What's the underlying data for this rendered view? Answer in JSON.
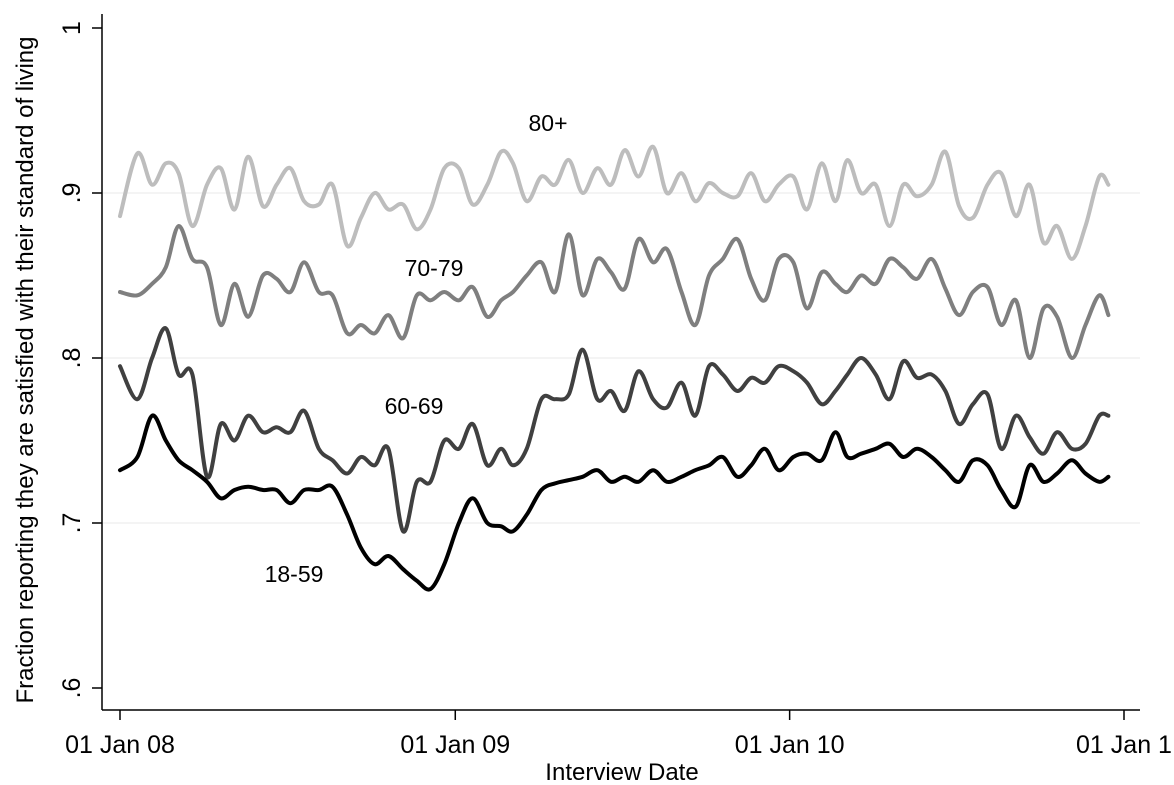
{
  "chart_data": {
    "type": "line",
    "xlabel": "Interview Date",
    "ylabel": "Fraction reporting they are satisfied with their standard of living",
    "xlim": [
      "2008-01-01",
      "2011-01-01"
    ],
    "ylim": [
      0.6,
      1.0
    ],
    "x_ticks": [
      {
        "value": "2008-01-01",
        "label": "01 Jan 08"
      },
      {
        "value": "2009-01-01",
        "label": "01 Jan 09"
      },
      {
        "value": "2010-01-01",
        "label": "01 Jan 10"
      },
      {
        "value": "2011-01-01",
        "label": "01 Jan 1"
      }
    ],
    "y_ticks": [
      {
        "value": 0.6,
        "label": ".6"
      },
      {
        "value": 0.7,
        "label": ".7"
      },
      {
        "value": 0.8,
        "label": ".8"
      },
      {
        "value": 0.9,
        "label": ".9"
      },
      {
        "value": 1.0,
        "label": "1"
      }
    ],
    "grid": true,
    "legend": "none (series labelled directly on the plot)",
    "series": [
      {
        "name": "80+",
        "color": "#bdbdbd",
        "x": [
          "2008-01-01",
          "2008-01-20",
          "2008-02-05",
          "2008-02-20",
          "2008-03-05",
          "2008-03-20",
          "2008-04-05",
          "2008-04-20",
          "2008-05-05",
          "2008-05-20",
          "2008-06-05",
          "2008-06-20",
          "2008-07-05",
          "2008-07-20",
          "2008-08-05",
          "2008-08-20",
          "2008-09-05",
          "2008-09-20",
          "2008-10-05",
          "2008-10-20",
          "2008-11-05",
          "2008-11-20",
          "2008-12-05",
          "2008-12-20",
          "2009-01-05",
          "2009-01-20",
          "2009-02-05",
          "2009-02-20",
          "2009-03-05",
          "2009-03-20",
          "2009-04-05",
          "2009-04-20",
          "2009-05-05",
          "2009-05-20",
          "2009-06-05",
          "2009-06-20",
          "2009-07-05",
          "2009-07-20",
          "2009-08-05",
          "2009-08-20",
          "2009-09-05",
          "2009-09-20",
          "2009-10-05",
          "2009-10-20",
          "2009-11-05",
          "2009-11-20",
          "2009-12-05",
          "2009-12-20",
          "2010-01-05",
          "2010-01-20",
          "2010-02-05",
          "2010-02-20",
          "2010-03-05",
          "2010-03-20",
          "2010-04-05",
          "2010-04-20",
          "2010-05-05",
          "2010-05-20",
          "2010-06-05",
          "2010-06-20",
          "2010-07-05",
          "2010-07-20",
          "2010-08-05",
          "2010-08-20",
          "2010-09-05",
          "2010-09-20",
          "2010-10-05",
          "2010-10-20",
          "2010-11-05",
          "2010-11-20",
          "2010-12-05",
          "2010-12-15"
        ],
        "values": [
          0.886,
          0.924,
          0.905,
          0.918,
          0.912,
          0.88,
          0.905,
          0.915,
          0.89,
          0.922,
          0.892,
          0.905,
          0.915,
          0.895,
          0.893,
          0.905,
          0.868,
          0.885,
          0.9,
          0.89,
          0.893,
          0.878,
          0.89,
          0.915,
          0.915,
          0.893,
          0.905,
          0.925,
          0.918,
          0.895,
          0.91,
          0.905,
          0.92,
          0.9,
          0.915,
          0.905,
          0.926,
          0.91,
          0.928,
          0.9,
          0.912,
          0.895,
          0.906,
          0.9,
          0.898,
          0.912,
          0.895,
          0.905,
          0.91,
          0.89,
          0.918,
          0.895,
          0.92,
          0.9,
          0.905,
          0.88,
          0.905,
          0.898,
          0.905,
          0.925,
          0.892,
          0.885,
          0.905,
          0.912,
          0.886,
          0.905,
          0.87,
          0.88,
          0.86,
          0.88,
          0.91,
          0.905
        ]
      },
      {
        "name": "70-79",
        "color": "#7f7f7f",
        "x": [
          "2008-01-01",
          "2008-01-20",
          "2008-02-05",
          "2008-02-20",
          "2008-03-05",
          "2008-03-20",
          "2008-04-05",
          "2008-04-20",
          "2008-05-05",
          "2008-05-20",
          "2008-06-05",
          "2008-06-20",
          "2008-07-05",
          "2008-07-20",
          "2008-08-05",
          "2008-08-20",
          "2008-09-05",
          "2008-09-20",
          "2008-10-05",
          "2008-10-20",
          "2008-11-05",
          "2008-11-20",
          "2008-12-05",
          "2008-12-20",
          "2009-01-05",
          "2009-01-20",
          "2009-02-05",
          "2009-02-20",
          "2009-03-05",
          "2009-03-20",
          "2009-04-05",
          "2009-04-20",
          "2009-05-05",
          "2009-05-20",
          "2009-06-05",
          "2009-06-20",
          "2009-07-05",
          "2009-07-20",
          "2009-08-05",
          "2009-08-20",
          "2009-09-05",
          "2009-09-20",
          "2009-10-05",
          "2009-10-20",
          "2009-11-05",
          "2009-11-20",
          "2009-12-05",
          "2009-12-20",
          "2010-01-05",
          "2010-01-20",
          "2010-02-05",
          "2010-02-20",
          "2010-03-05",
          "2010-03-20",
          "2010-04-05",
          "2010-04-20",
          "2010-05-05",
          "2010-05-20",
          "2010-06-05",
          "2010-06-20",
          "2010-07-05",
          "2010-07-20",
          "2010-08-05",
          "2010-08-20",
          "2010-09-05",
          "2010-09-20",
          "2010-10-05",
          "2010-10-20",
          "2010-11-05",
          "2010-11-20",
          "2010-12-05",
          "2010-12-15"
        ],
        "values": [
          0.84,
          0.838,
          0.845,
          0.855,
          0.88,
          0.86,
          0.855,
          0.82,
          0.845,
          0.825,
          0.85,
          0.848,
          0.84,
          0.858,
          0.84,
          0.838,
          0.815,
          0.82,
          0.815,
          0.826,
          0.812,
          0.838,
          0.835,
          0.84,
          0.835,
          0.843,
          0.825,
          0.835,
          0.84,
          0.85,
          0.858,
          0.84,
          0.875,
          0.838,
          0.86,
          0.852,
          0.842,
          0.872,
          0.858,
          0.866,
          0.84,
          0.82,
          0.85,
          0.86,
          0.872,
          0.848,
          0.835,
          0.86,
          0.858,
          0.83,
          0.852,
          0.845,
          0.84,
          0.85,
          0.845,
          0.86,
          0.855,
          0.848,
          0.86,
          0.842,
          0.826,
          0.84,
          0.843,
          0.82,
          0.835,
          0.8,
          0.83,
          0.825,
          0.8,
          0.82,
          0.838,
          0.826
        ]
      },
      {
        "name": "60-69",
        "color": "#404040",
        "x": [
          "2008-01-01",
          "2008-01-20",
          "2008-02-05",
          "2008-02-20",
          "2008-03-05",
          "2008-03-20",
          "2008-04-05",
          "2008-04-20",
          "2008-05-05",
          "2008-05-20",
          "2008-06-05",
          "2008-06-20",
          "2008-07-05",
          "2008-07-20",
          "2008-08-05",
          "2008-08-20",
          "2008-09-05",
          "2008-09-20",
          "2008-10-05",
          "2008-10-20",
          "2008-11-05",
          "2008-11-20",
          "2008-12-05",
          "2008-12-20",
          "2009-01-05",
          "2009-01-20",
          "2009-02-05",
          "2009-02-20",
          "2009-03-05",
          "2009-03-20",
          "2009-04-05",
          "2009-04-20",
          "2009-05-05",
          "2009-05-20",
          "2009-06-05",
          "2009-06-20",
          "2009-07-05",
          "2009-07-20",
          "2009-08-05",
          "2009-08-20",
          "2009-09-05",
          "2009-09-20",
          "2009-10-05",
          "2009-10-20",
          "2009-11-05",
          "2009-11-20",
          "2009-12-05",
          "2009-12-20",
          "2010-01-05",
          "2010-01-20",
          "2010-02-05",
          "2010-02-20",
          "2010-03-05",
          "2010-03-20",
          "2010-04-05",
          "2010-04-20",
          "2010-05-05",
          "2010-05-20",
          "2010-06-05",
          "2010-06-20",
          "2010-07-05",
          "2010-07-20",
          "2010-08-05",
          "2010-08-20",
          "2010-09-05",
          "2010-09-20",
          "2010-10-05",
          "2010-10-20",
          "2010-11-05",
          "2010-11-20",
          "2010-12-05",
          "2010-12-15"
        ],
        "values": [
          0.795,
          0.775,
          0.8,
          0.818,
          0.79,
          0.79,
          0.728,
          0.76,
          0.75,
          0.765,
          0.755,
          0.758,
          0.755,
          0.768,
          0.745,
          0.738,
          0.73,
          0.74,
          0.735,
          0.745,
          0.695,
          0.725,
          0.725,
          0.75,
          0.745,
          0.76,
          0.735,
          0.745,
          0.735,
          0.745,
          0.775,
          0.775,
          0.778,
          0.805,
          0.775,
          0.78,
          0.768,
          0.792,
          0.775,
          0.77,
          0.785,
          0.765,
          0.795,
          0.79,
          0.78,
          0.788,
          0.785,
          0.795,
          0.792,
          0.785,
          0.772,
          0.78,
          0.79,
          0.8,
          0.79,
          0.775,
          0.798,
          0.788,
          0.79,
          0.78,
          0.76,
          0.772,
          0.778,
          0.745,
          0.765,
          0.752,
          0.742,
          0.755,
          0.745,
          0.748,
          0.765,
          0.765
        ]
      },
      {
        "name": "18-59",
        "color": "#000000",
        "x": [
          "2008-01-01",
          "2008-01-20",
          "2008-02-05",
          "2008-02-20",
          "2008-03-05",
          "2008-03-20",
          "2008-04-05",
          "2008-04-20",
          "2008-05-05",
          "2008-05-20",
          "2008-06-05",
          "2008-06-20",
          "2008-07-05",
          "2008-07-20",
          "2008-08-05",
          "2008-08-20",
          "2008-09-05",
          "2008-09-20",
          "2008-10-05",
          "2008-10-20",
          "2008-11-05",
          "2008-11-20",
          "2008-12-05",
          "2008-12-20",
          "2009-01-05",
          "2009-01-20",
          "2009-02-05",
          "2009-02-20",
          "2009-03-05",
          "2009-03-20",
          "2009-04-05",
          "2009-04-20",
          "2009-05-05",
          "2009-05-20",
          "2009-06-05",
          "2009-06-20",
          "2009-07-05",
          "2009-07-20",
          "2009-08-05",
          "2009-08-20",
          "2009-09-05",
          "2009-09-20",
          "2009-10-05",
          "2009-10-20",
          "2009-11-05",
          "2009-11-20",
          "2009-12-05",
          "2009-12-20",
          "2010-01-05",
          "2010-01-20",
          "2010-02-05",
          "2010-02-20",
          "2010-03-05",
          "2010-03-20",
          "2010-04-05",
          "2010-04-20",
          "2010-05-05",
          "2010-05-20",
          "2010-06-05",
          "2010-06-20",
          "2010-07-05",
          "2010-07-20",
          "2010-08-05",
          "2010-08-20",
          "2010-09-05",
          "2010-09-20",
          "2010-10-05",
          "2010-10-20",
          "2010-11-05",
          "2010-11-20",
          "2010-12-05",
          "2010-12-15"
        ],
        "values": [
          0.732,
          0.74,
          0.765,
          0.75,
          0.738,
          0.732,
          0.725,
          0.715,
          0.72,
          0.722,
          0.72,
          0.72,
          0.712,
          0.72,
          0.72,
          0.722,
          0.705,
          0.685,
          0.675,
          0.68,
          0.672,
          0.665,
          0.66,
          0.675,
          0.7,
          0.715,
          0.7,
          0.698,
          0.695,
          0.705,
          0.72,
          0.724,
          0.726,
          0.728,
          0.732,
          0.725,
          0.728,
          0.725,
          0.732,
          0.725,
          0.728,
          0.732,
          0.735,
          0.74,
          0.728,
          0.735,
          0.745,
          0.732,
          0.74,
          0.742,
          0.738,
          0.755,
          0.74,
          0.742,
          0.745,
          0.748,
          0.74,
          0.745,
          0.74,
          0.732,
          0.725,
          0.738,
          0.735,
          0.72,
          0.71,
          0.735,
          0.725,
          0.73,
          0.738,
          0.73,
          0.725,
          0.728
        ]
      }
    ]
  }
}
